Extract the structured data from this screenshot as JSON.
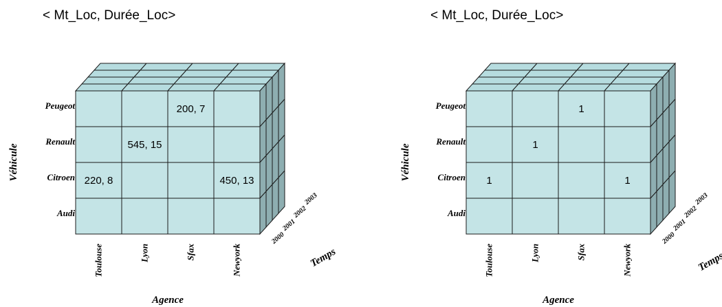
{
  "colors": {
    "front": "#c4e4e6",
    "top": "#b6dcdf",
    "side": "#8eaeb1",
    "stroke": "#1a1a1a"
  },
  "cubes": [
    {
      "title": "< Mt_Loc, Durée_Loc>",
      "rows": [
        "Peugeot",
        "Renault",
        "Citroen",
        "Audi"
      ],
      "cols": [
        "Toulouse",
        "Lyon",
        "Sfax",
        "Newyork"
      ],
      "depth": [
        "2000",
        "2001",
        "2002",
        "2003"
      ],
      "x_axis": "Agence",
      "y_axis": "Véhicule",
      "z_axis": "Temps",
      "cells": [
        {
          "row": 0,
          "col": 2,
          "value": "200, 7"
        },
        {
          "row": 1,
          "col": 1,
          "value": "545, 15"
        },
        {
          "row": 2,
          "col": 0,
          "value": "220, 8"
        },
        {
          "row": 2,
          "col": 3,
          "value": "450, 13"
        }
      ]
    },
    {
      "title": "< Mt_Loc, Durée_Loc>",
      "rows": [
        "Peugeot",
        "Renault",
        "Citroen",
        "Audi"
      ],
      "cols": [
        "Toulouse",
        "Lyon",
        "Sfax",
        "Newyork"
      ],
      "depth": [
        "2000",
        "2001",
        "2002",
        "2003"
      ],
      "x_axis": "Agence",
      "y_axis": "Véhicule",
      "z_axis": "Temps",
      "cells": [
        {
          "row": 0,
          "col": 2,
          "value": "1"
        },
        {
          "row": 1,
          "col": 1,
          "value": "1"
        },
        {
          "row": 2,
          "col": 0,
          "value": "1"
        },
        {
          "row": 2,
          "col": 3,
          "value": "1"
        }
      ]
    }
  ]
}
